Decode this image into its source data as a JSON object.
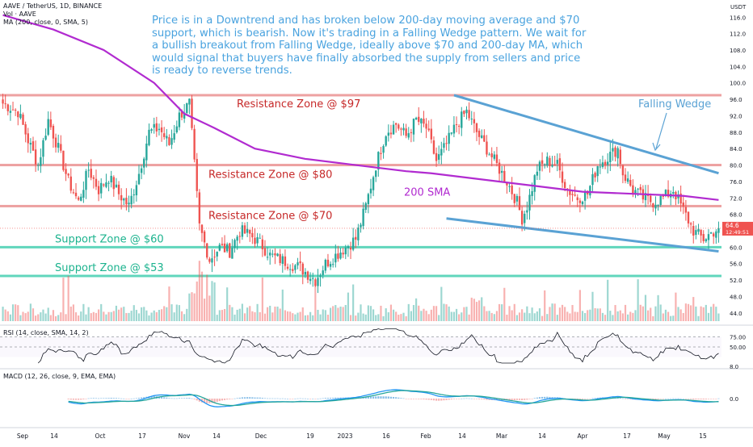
{
  "header": {
    "symbol_line": "AAVE / TetherUS, 1D, BINANCE",
    "vol_line": "Vol · AAVE",
    "ma_line": "MA (200, close, 0, SMA, 5)",
    "currency": "USDT"
  },
  "annotation": "Price is in a Downtrend and has broken below 200-day moving average and $70 support, which is bearish. Now it's trading in a Falling Wedge pattern. We wait for a bullish breakout from Falling Wedge, ideally above $70 and 200-day MA, which would signal that buyers have finally absorbed the supply from sellers and price is ready to reverse trends.",
  "zones": {
    "resistance": [
      {
        "label": "Resistance Zone @ $97",
        "price": 97
      },
      {
        "label": "Resistance Zone @ $80",
        "price": 80
      },
      {
        "label": "Resistance Zone @ $70",
        "price": 70
      }
    ],
    "support": [
      {
        "label": "Support Zone @ $60",
        "price": 60
      },
      {
        "label": "Support Zone @ $53",
        "price": 53
      }
    ]
  },
  "labels": {
    "falling_wedge": "Falling Wedge",
    "sma": "200 SMA"
  },
  "current_price": {
    "value": "64.6",
    "countdown": "12:49:51"
  },
  "rsi": {
    "title": "RSI (14, close, SMA, 14, 2)",
    "ticks": [
      "75.00",
      "50.00",
      "8.0"
    ]
  },
  "macd": {
    "title": "MACD (12, 26, close, 9, EMA, EMA)",
    "ticks": [
      "0.0"
    ]
  },
  "colors": {
    "up": "#26a69a",
    "down": "#ef5350",
    "sma": "#b12bd0",
    "resistance": "#e88a8a",
    "support": "#4fd1b5",
    "wedge": "#5aa2d4",
    "annotation": "#4aa3df",
    "resistance_text": "#c62828",
    "support_text": "#1bb38e"
  },
  "chart_data": {
    "type": "candlestick",
    "y_ticks": [
      44,
      48,
      52,
      56,
      60,
      64,
      68,
      72,
      76,
      80,
      84,
      88,
      92,
      96,
      100,
      104,
      108,
      112,
      116
    ],
    "ylim": [
      42,
      119
    ],
    "x_labels": [
      "Sep",
      "14",
      "Oct",
      "17",
      "Nov",
      "14",
      "Dec",
      "19",
      "2023",
      "16",
      "Feb",
      "14",
      "Mar",
      "14",
      "Apr",
      "17",
      "May",
      "15"
    ],
    "close_anchors": [
      [
        0,
        95
      ],
      [
        6,
        93
      ],
      [
        10,
        86
      ],
      [
        14,
        80
      ],
      [
        18,
        91
      ],
      [
        22,
        84
      ],
      [
        26,
        76
      ],
      [
        30,
        71
      ],
      [
        34,
        79
      ],
      [
        38,
        74
      ],
      [
        42,
        77
      ],
      [
        46,
        73
      ],
      [
        50,
        70
      ],
      [
        54,
        78
      ],
      [
        58,
        88
      ],
      [
        62,
        89
      ],
      [
        66,
        85
      ],
      [
        70,
        92
      ],
      [
        74,
        95
      ],
      [
        76,
        80
      ],
      [
        78,
        65
      ],
      [
        82,
        57
      ],
      [
        86,
        60
      ],
      [
        90,
        59
      ],
      [
        94,
        64
      ],
      [
        98,
        63
      ],
      [
        102,
        61
      ],
      [
        106,
        58
      ],
      [
        110,
        57
      ],
      [
        114,
        56
      ],
      [
        118,
        55
      ],
      [
        122,
        53
      ],
      [
        124,
        52
      ],
      [
        128,
        56
      ],
      [
        132,
        58
      ],
      [
        136,
        60
      ],
      [
        140,
        62
      ],
      [
        144,
        70
      ],
      [
        148,
        80
      ],
      [
        152,
        88
      ],
      [
        156,
        90
      ],
      [
        160,
        87
      ],
      [
        164,
        91
      ],
      [
        168,
        89
      ],
      [
        172,
        81
      ],
      [
        176,
        85
      ],
      [
        180,
        90
      ],
      [
        184,
        93
      ],
      [
        188,
        88
      ],
      [
        192,
        84
      ],
      [
        196,
        80
      ],
      [
        200,
        76
      ],
      [
        204,
        71
      ],
      [
        206,
        67
      ],
      [
        208,
        70
      ],
      [
        212,
        79
      ],
      [
        216,
        81
      ],
      [
        220,
        80
      ],
      [
        224,
        74
      ],
      [
        228,
        72
      ],
      [
        232,
        73
      ],
      [
        236,
        80
      ],
      [
        240,
        82
      ],
      [
        244,
        84
      ],
      [
        246,
        78
      ],
      [
        250,
        74
      ],
      [
        254,
        72
      ],
      [
        258,
        71
      ],
      [
        262,
        72
      ],
      [
        266,
        74
      ],
      [
        270,
        69
      ],
      [
        274,
        64
      ],
      [
        278,
        62
      ],
      [
        280,
        63
      ],
      [
        284,
        64.6
      ]
    ],
    "sma_points": [
      [
        0,
        116.5
      ],
      [
        20,
        113
      ],
      [
        40,
        108
      ],
      [
        60,
        100
      ],
      [
        72,
        92.5
      ],
      [
        84,
        89
      ],
      [
        100,
        84
      ],
      [
        120,
        81.5
      ],
      [
        140,
        80
      ],
      [
        160,
        78.5
      ],
      [
        170,
        78
      ],
      [
        190,
        76.5
      ],
      [
        210,
        75
      ],
      [
        230,
        73.5
      ],
      [
        250,
        73
      ],
      [
        270,
        72.5
      ],
      [
        284,
        71.5
      ]
    ],
    "wedge_upper": [
      [
        179,
        97
      ],
      [
        284,
        78
      ]
    ],
    "wedge_lower": [
      [
        176,
        67
      ],
      [
        284,
        59
      ]
    ]
  }
}
